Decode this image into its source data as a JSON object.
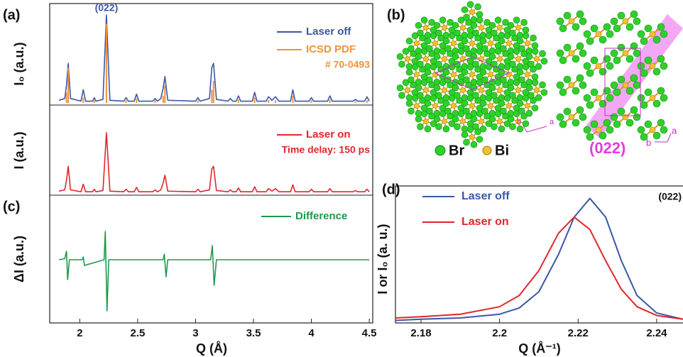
{
  "chart_data": [
    {
      "type": "line",
      "xlabel": "Q (Å)",
      "xlim": [
        1.74,
        4.53
      ],
      "xticks": [
        2,
        2.5,
        3,
        3.5,
        4,
        4.5
      ],
      "x": [
        1.82,
        1.87,
        1.885,
        1.9,
        1.92,
        2.01,
        2.03,
        2.05,
        2.11,
        2.125,
        2.14,
        2.2,
        2.23,
        2.26,
        2.38,
        2.4,
        2.42,
        2.47,
        2.49,
        2.51,
        2.63,
        2.65,
        2.67,
        2.7,
        2.72,
        2.735,
        2.76,
        3.0,
        3.02,
        3.04,
        3.12,
        3.14,
        3.155,
        3.18,
        3.28,
        3.3,
        3.32,
        3.35,
        3.37,
        3.39,
        3.49,
        3.51,
        3.53,
        3.61,
        3.63,
        3.66,
        3.69,
        3.72,
        3.82,
        3.84,
        3.86,
        3.98,
        4.0,
        4.02,
        4.14,
        4.16,
        4.18,
        4.36,
        4.38,
        4.4,
        4.46,
        4.48,
        4.5
      ],
      "panels": [
        {
          "label": "(a)",
          "ylabel": "I₀ (a.u.)",
          "ylim": [
            0,
            1.05
          ],
          "annotation": "(022)",
          "series": [
            {
              "name": "Laser off",
              "color": "#3b57a6",
              "values": [
                0.03,
                0.05,
                0.2,
                0.45,
                0.05,
                0.02,
                0.15,
                0.02,
                0.02,
                0.06,
                0.02,
                0.04,
                1.0,
                0.03,
                0.02,
                0.06,
                0.02,
                0.02,
                0.1,
                0.02,
                0.02,
                0.05,
                0.02,
                0.05,
                0.17,
                0.3,
                0.03,
                0.02,
                0.06,
                0.02,
                0.05,
                0.4,
                0.45,
                0.04,
                0.02,
                0.05,
                0.02,
                0.02,
                0.08,
                0.02,
                0.02,
                0.12,
                0.02,
                0.02,
                0.07,
                0.03,
                0.07,
                0.02,
                0.02,
                0.15,
                0.02,
                0.02,
                0.06,
                0.02,
                0.02,
                0.08,
                0.02,
                0.02,
                0.04,
                0.02,
                0.02,
                0.07,
                0.02
              ]
            },
            {
              "name": "ICSD PDF",
              "note": "# 70-0493",
              "type": "bar",
              "color": "#f0923a",
              "x": [
                1.885,
                1.9,
                2.03,
                2.125,
                2.23,
                2.4,
                2.49,
                2.65,
                2.72,
                2.735,
                3.02,
                3.14,
                3.155,
                3.37,
                3.51,
                3.63,
                3.69,
                3.84,
                4.0,
                4.16,
                4.38,
                4.48
              ],
              "values": [
                0.12,
                0.4,
                0.06,
                0.03,
                0.9,
                0.03,
                0.05,
                0.03,
                0.08,
                0.2,
                0.03,
                0.15,
                0.25,
                0.04,
                0.06,
                0.03,
                0.03,
                0.08,
                0.03,
                0.04,
                0.02,
                0.03
              ]
            }
          ]
        },
        {
          "ylabel": "I (a.u.)",
          "ylim": [
            0,
            1.05
          ],
          "series": [
            {
              "name": "Laser on",
              "note": "Time delay: 150 ps",
              "color": "#e0262b",
              "values": [
                0.03,
                0.05,
                0.2,
                0.42,
                0.05,
                0.02,
                0.14,
                0.02,
                0.02,
                0.06,
                0.02,
                0.04,
                0.95,
                0.03,
                0.02,
                0.06,
                0.02,
                0.02,
                0.09,
                0.02,
                0.02,
                0.05,
                0.02,
                0.05,
                0.16,
                0.28,
                0.03,
                0.02,
                0.06,
                0.02,
                0.05,
                0.38,
                0.42,
                0.04,
                0.02,
                0.05,
                0.02,
                0.02,
                0.08,
                0.02,
                0.02,
                0.1,
                0.02,
                0.02,
                0.07,
                0.03,
                0.07,
                0.02,
                0.02,
                0.13,
                0.02,
                0.02,
                0.06,
                0.02,
                0.02,
                0.07,
                0.02,
                0.02,
                0.04,
                0.02,
                0.02,
                0.06,
                0.02
              ]
            }
          ]
        },
        {
          "label": "(c)",
          "ylabel": "ΔI (a.u.)",
          "ylim": [
            -1,
            1
          ],
          "series": [
            {
              "name": "Difference",
              "color": "#1e9a4c",
              "x": [
                1.82,
                1.87,
                1.885,
                1.895,
                1.91,
                2.02,
                2.03,
                2.04,
                2.21,
                2.22,
                2.235,
                2.25,
                2.72,
                2.73,
                2.745,
                2.76,
                3.13,
                3.145,
                3.16,
                3.18,
                3.5,
                4.5
              ],
              "values": [
                0,
                0.02,
                0.15,
                -0.35,
                0,
                0,
                0.05,
                -0.1,
                0,
                0.5,
                -0.9,
                0,
                0,
                0.1,
                -0.3,
                0,
                0,
                0.25,
                -0.45,
                0,
                0,
                0
              ]
            }
          ]
        }
      ]
    },
    {
      "type": "line",
      "label": "(d)",
      "xlabel": "Q (Å⁻¹)",
      "ylabel": "I or I₀ (a. u.)",
      "annotation": "(022)",
      "xlim": [
        2.1735,
        2.2467
      ],
      "xticks": [
        2.18,
        2.2,
        2.22,
        2.24
      ],
      "ylim": [
        0,
        1.1
      ],
      "x": [
        2.1735,
        2.18,
        2.19,
        2.2,
        2.205,
        2.21,
        2.215,
        2.219,
        2.223,
        2.227,
        2.231,
        2.235,
        2.24,
        2.2467
      ],
      "series": [
        {
          "name": "Laser off",
          "color": "#3b57a6",
          "values": [
            0.02,
            0.03,
            0.04,
            0.07,
            0.12,
            0.25,
            0.55,
            0.85,
            1.0,
            0.85,
            0.5,
            0.22,
            0.08,
            0.03
          ]
        },
        {
          "name": "Laser on",
          "color": "#e0262b",
          "values": [
            0.04,
            0.05,
            0.07,
            0.13,
            0.22,
            0.42,
            0.72,
            0.85,
            0.75,
            0.5,
            0.27,
            0.13,
            0.06,
            0.03
          ]
        }
      ]
    }
  ],
  "structure": {
    "label": "(b)",
    "legend": [
      "Br",
      "Bi"
    ],
    "plane": "(022)",
    "axis_labels": [
      "b",
      "a",
      "b",
      "a"
    ]
  }
}
